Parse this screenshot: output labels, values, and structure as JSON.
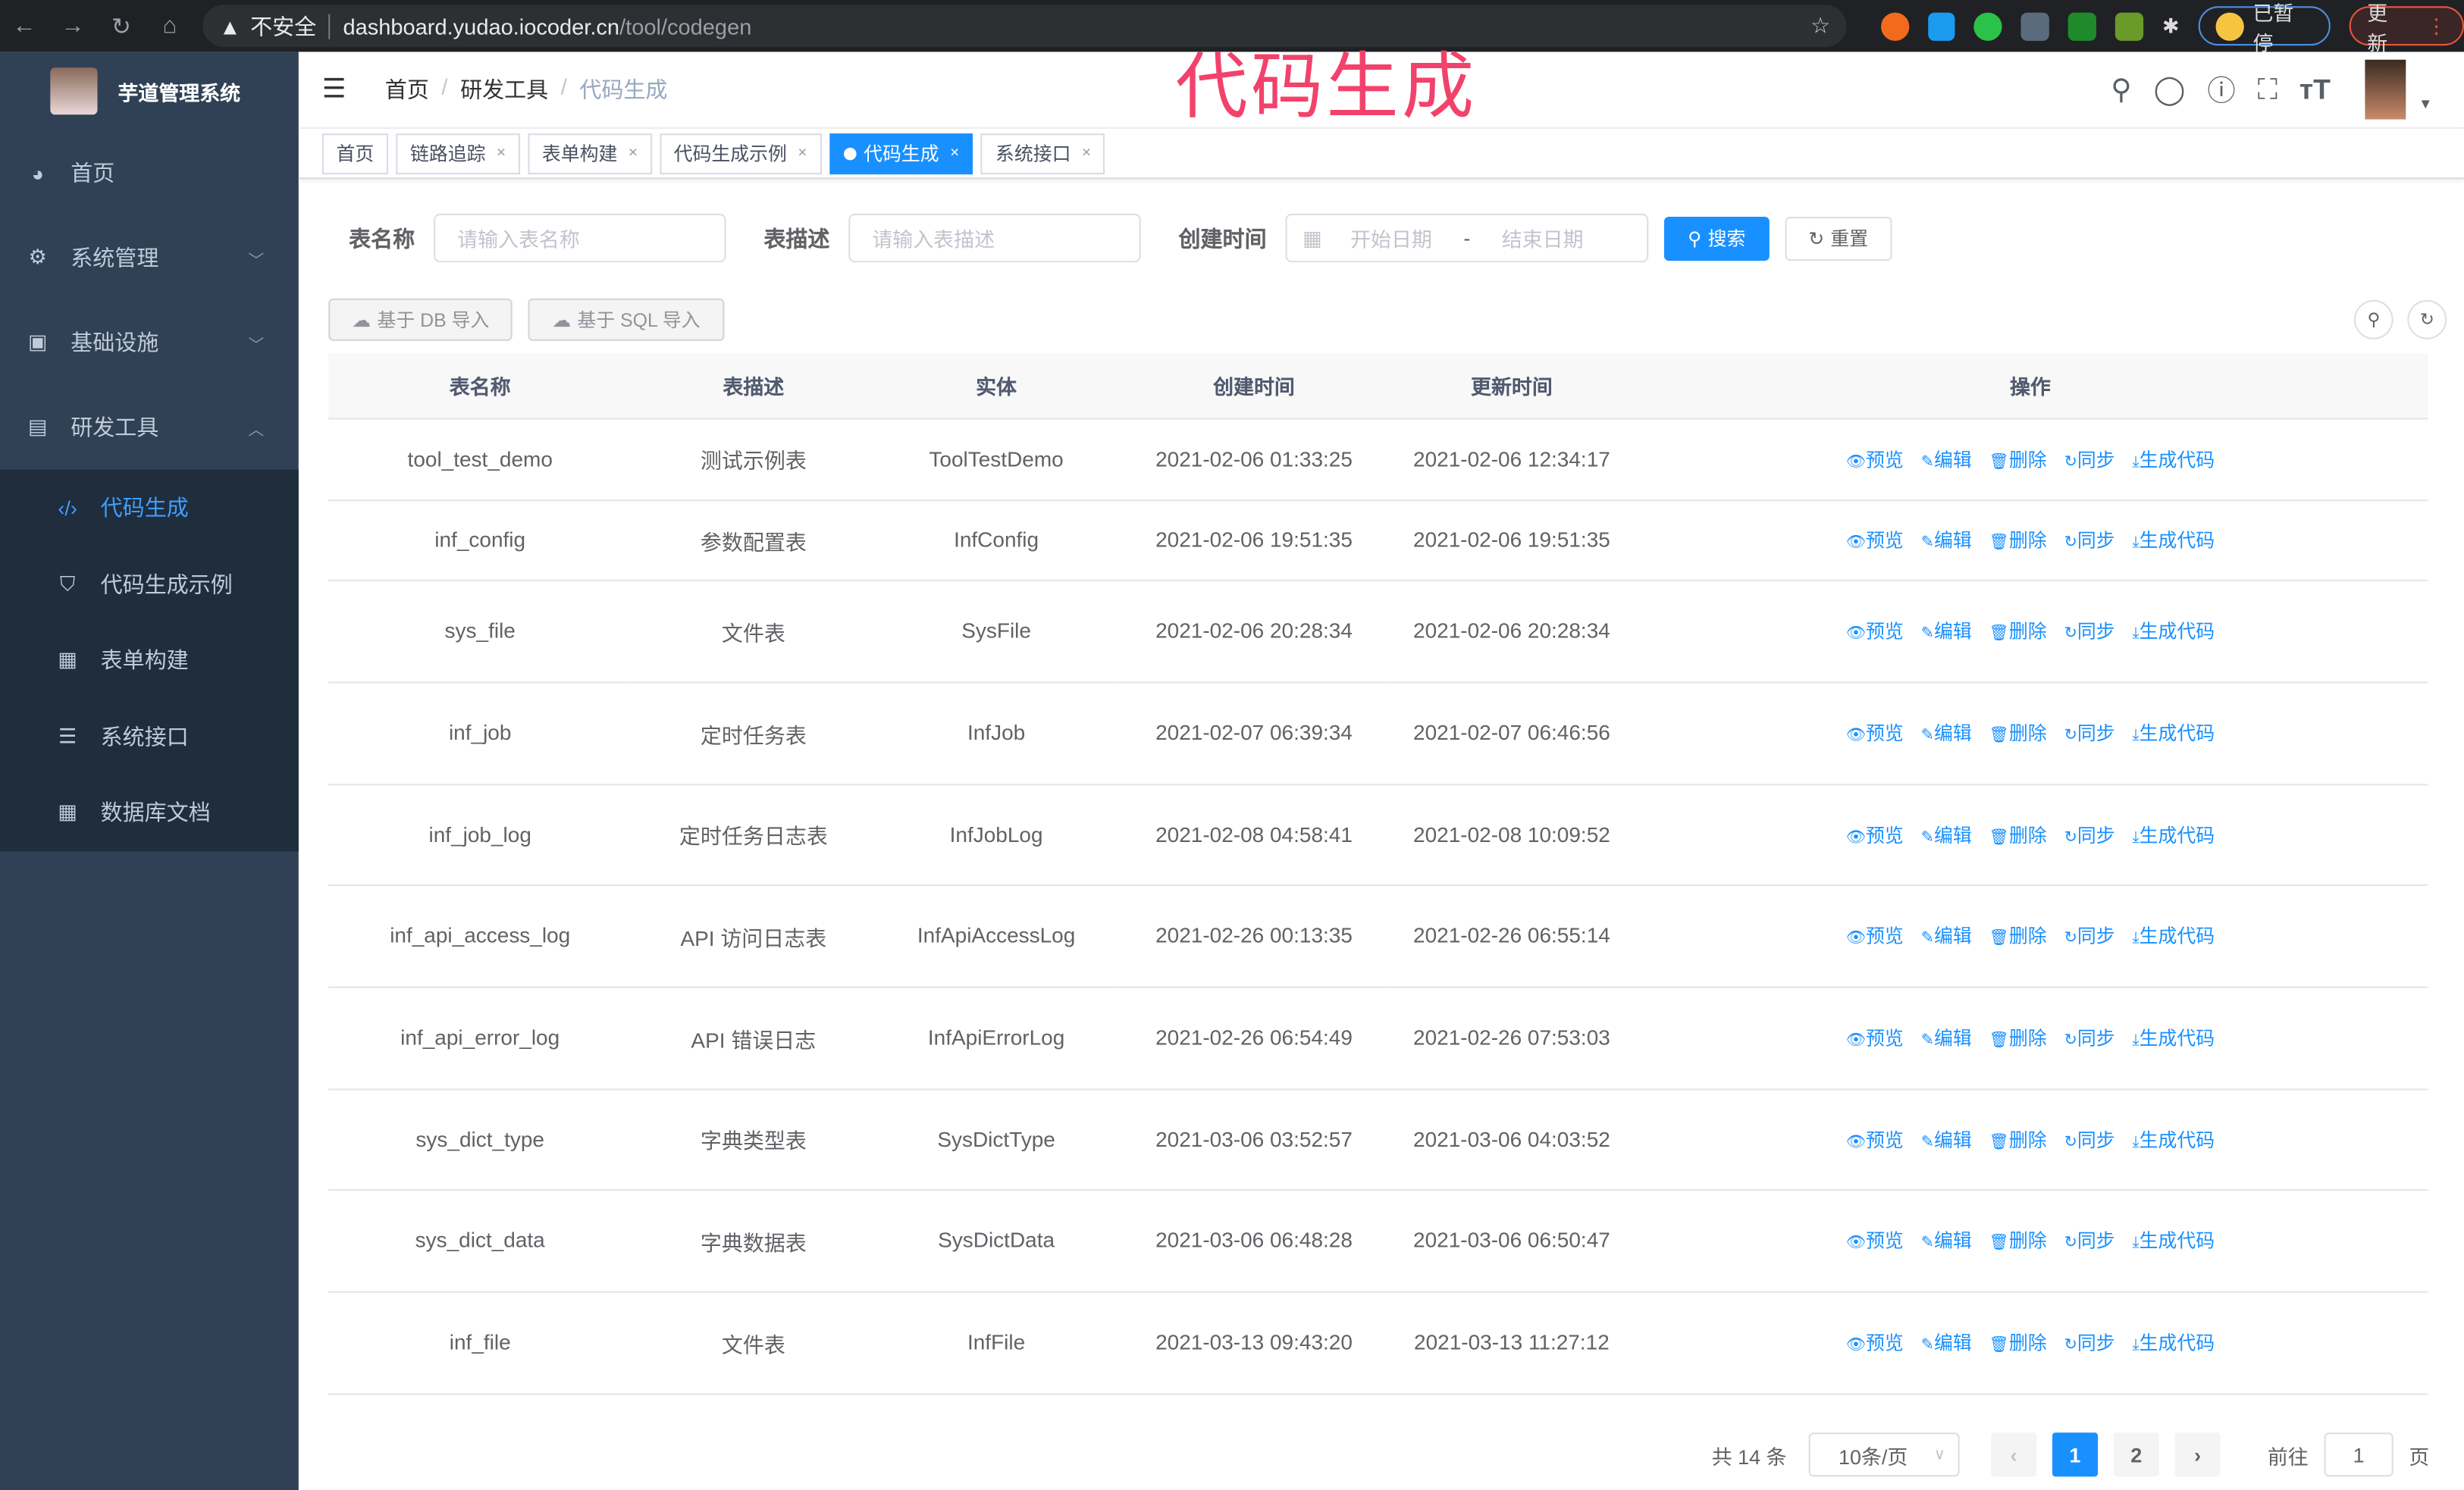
{
  "browser": {
    "security": "不安全",
    "url_host": "dashboard.yudao.iocoder.cn",
    "url_path": "/tool/codegen",
    "profile_label": "已暂停",
    "update_label": "更新"
  },
  "overlay_title": "代码生成",
  "sidebar": {
    "title": "芋道管理系统",
    "items": [
      {
        "label": "首页",
        "icon": "dashboard-icon"
      },
      {
        "label": "系统管理",
        "icon": "gear-icon"
      },
      {
        "label": "基础设施",
        "icon": "monitor-icon"
      },
      {
        "label": "研发工具",
        "icon": "toolbox-icon"
      }
    ],
    "sub_items": [
      {
        "label": "代码生成",
        "icon": "code-icon",
        "active": true
      },
      {
        "label": "代码生成示例",
        "icon": "shield-icon"
      },
      {
        "label": "表单构建",
        "icon": "form-icon"
      },
      {
        "label": "系统接口",
        "icon": "sliders-icon"
      },
      {
        "label": "数据库文档",
        "icon": "table-icon"
      }
    ]
  },
  "breadcrumb": [
    "首页",
    "研发工具",
    "代码生成"
  ],
  "tags": [
    "首页",
    "链路追踪",
    "表单构建",
    "代码生成示例",
    "代码生成",
    "系统接口"
  ],
  "search": {
    "table_name_label": "表名称",
    "table_name_placeholder": "请输入表名称",
    "table_desc_label": "表描述",
    "table_desc_placeholder": "请输入表描述",
    "create_time_label": "创建时间",
    "start_placeholder": "开始日期",
    "range_sep": "-",
    "end_placeholder": "结束日期",
    "search_label": "搜索",
    "reset_label": "重置"
  },
  "actions": {
    "import_db": "基于 DB 导入",
    "import_sql": "基于 SQL 导入"
  },
  "table": {
    "headers": [
      "表名称",
      "表描述",
      "实体",
      "创建时间",
      "更新时间",
      "操作"
    ],
    "ops": [
      "预览",
      "编辑",
      "删除",
      "同步",
      "生成代码"
    ],
    "rows": [
      [
        "tool_test_demo",
        "测试示例表",
        "ToolTestDemo",
        "2021-02-06 01:33:25",
        "2021-02-06 12:34:17"
      ],
      [
        "inf_config",
        "参数配置表",
        "InfConfig",
        "2021-02-06 19:51:35",
        "2021-02-06 19:51:35"
      ],
      [
        "sys_file",
        "文件表",
        "SysFile",
        "2021-02-06 20:28:34",
        "2021-02-06 20:28:34"
      ],
      [
        "inf_job",
        "定时任务表",
        "InfJob",
        "2021-02-07 06:39:34",
        "2021-02-07 06:46:56"
      ],
      [
        "inf_job_log",
        "定时任务日志表",
        "InfJobLog",
        "2021-02-08 04:58:41",
        "2021-02-08 10:09:52"
      ],
      [
        "inf_api_access_log",
        "API 访问日志表",
        "InfApiAccessLog",
        "2021-02-26 00:13:35",
        "2021-02-26 06:55:14"
      ],
      [
        "inf_api_error_log",
        "API 错误日志",
        "InfApiErrorLog",
        "2021-02-26 06:54:49",
        "2021-02-26 07:53:03"
      ],
      [
        "sys_dict_type",
        "字典类型表",
        "SysDictType",
        "2021-03-06 03:52:57",
        "2021-03-06 04:03:52"
      ],
      [
        "sys_dict_data",
        "字典数据表",
        "SysDictData",
        "2021-03-06 06:48:28",
        "2021-03-06 06:50:47"
      ],
      [
        "inf_file",
        "文件表",
        "InfFile",
        "2021-03-13 09:43:20",
        "2021-03-13 11:27:12"
      ]
    ]
  },
  "pagination": {
    "total": "共 14 条",
    "page_size": "10条/页",
    "pages": [
      "1",
      "2"
    ],
    "current": "1",
    "goto_label": "前往",
    "goto_value": "1",
    "page_unit": "页"
  },
  "colors": {
    "primary": "#1890ff",
    "sidebar": "#304156",
    "overlay": "#f2426b"
  }
}
